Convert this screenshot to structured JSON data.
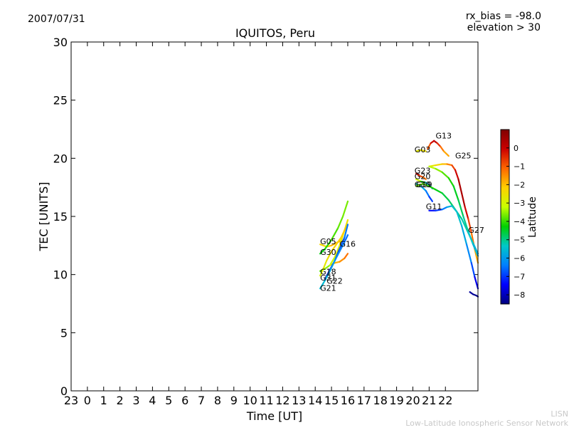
{
  "header": {
    "date": "2007/07/31",
    "rx_bias": "rx_bias = -98.0",
    "elevation": "elevation > 30",
    "title": "IQUITOS, Peru"
  },
  "footer": {
    "credit_line1": "LISN",
    "credit_line2": "Low-Latitude Ionospheric Sensor Network"
  },
  "colors": {
    "axis": "#000000",
    "background": "#ffffff",
    "credit": "#c8c8c8",
    "colormap": [
      "#00007f",
      "#0000ff",
      "#007fff",
      "#00c8c8",
      "#00d000",
      "#c8ff00",
      "#ffd000",
      "#ff6600",
      "#cc0000",
      "#7f0000"
    ]
  },
  "chart_data": {
    "type": "scatter",
    "title": "IQUITOS, Peru",
    "xlabel": "Time [UT]",
    "ylabel": "TEC [UNITS]",
    "x_tick_labels": [
      "23",
      "0",
      "1",
      "2",
      "3",
      "4",
      "5",
      "6",
      "7",
      "8",
      "9",
      "10",
      "11",
      "12",
      "13",
      "14",
      "15",
      "16",
      "17",
      "18",
      "19",
      "20",
      "21",
      "22"
    ],
    "x_tick_hours": [
      -1,
      0,
      1,
      2,
      3,
      4,
      5,
      6,
      7,
      8,
      9,
      10,
      11,
      12,
      13,
      14,
      15,
      16,
      17,
      18,
      19,
      20,
      21,
      22
    ],
    "xlim": [
      -1,
      24
    ],
    "ylim": [
      0,
      30
    ],
    "y_ticks": [
      0,
      5,
      10,
      15,
      20,
      25,
      30
    ],
    "grid": false,
    "colorbar": {
      "label": "Latitude",
      "range": [
        -8.5,
        1.0
      ],
      "ticks": [
        0,
        -1,
        -2,
        -3,
        -4,
        -5,
        -6,
        -7,
        -8
      ],
      "tick_labels": [
        "0",
        "−1",
        "−2",
        "−3",
        "−4",
        "−5",
        "−6",
        "−7",
        "−8"
      ]
    },
    "series": [
      {
        "name": "G05",
        "x": [
          14.3,
          14.7,
          15.0,
          15.4,
          15.8
        ],
        "y": [
          12.6,
          12.4,
          12.5,
          12.8,
          13.0
        ],
        "lat": [
          -2.5,
          -2.2,
          -2.0,
          -1.8,
          -1.6
        ]
      },
      {
        "name": "G30",
        "x": [
          14.3,
          14.6,
          15.0,
          15.4,
          15.7,
          16.0
        ],
        "y": [
          11.8,
          12.2,
          13.0,
          14.0,
          15.0,
          16.3
        ],
        "lat": [
          -4.5,
          -4.2,
          -4.0,
          -3.8,
          -3.7,
          -3.6
        ]
      },
      {
        "name": "G16",
        "x": [
          14.9,
          15.2,
          15.5,
          15.8,
          16.0
        ],
        "y": [
          10.8,
          11.0,
          11.1,
          11.4,
          11.8
        ],
        "lat": [
          -2.2,
          -2.0,
          -1.7,
          -1.4,
          -1.1
        ]
      },
      {
        "name": "G18",
        "x": [
          14.3,
          14.6,
          14.9,
          15.2,
          15.5,
          15.8,
          16.0
        ],
        "y": [
          10.3,
          10.5,
          10.8,
          11.5,
          12.5,
          13.8,
          14.7
        ],
        "lat": [
          -4.0,
          -3.7,
          -3.4,
          -3.1,
          -2.8,
          -2.6,
          -2.4
        ]
      },
      {
        "name": "G31",
        "x": [
          14.3,
          14.5,
          14.7,
          15.0,
          15.3,
          15.6,
          15.8,
          16.0
        ],
        "y": [
          9.9,
          10.5,
          11.2,
          12.0,
          12.6,
          13.2,
          13.8,
          14.3
        ],
        "lat": [
          -3.0,
          -2.8,
          -2.6,
          -2.4,
          -2.3,
          -2.2,
          -2.1,
          -2.0
        ]
      },
      {
        "name": "G22",
        "x": [
          14.6,
          14.9,
          15.2,
          15.5,
          15.8,
          16.0
        ],
        "y": [
          9.6,
          10.4,
          11.2,
          12.2,
          13.2,
          14.3
        ],
        "lat": [
          -8.0,
          -7.6,
          -7.2,
          -6.9,
          -6.6,
          -6.3
        ]
      },
      {
        "name": "G21",
        "x": [
          14.3,
          14.6,
          14.9,
          15.2,
          15.5,
          15.8,
          16.0
        ],
        "y": [
          8.8,
          9.5,
          10.3,
          11.2,
          12.0,
          12.8,
          13.4
        ],
        "lat": [
          -5.5,
          -5.6,
          -5.8,
          -6.0,
          -6.2,
          -6.4,
          -6.6
        ]
      },
      {
        "name": "G03",
        "x": [
          20.2,
          20.5,
          20.8
        ],
        "y": [
          20.6,
          20.7,
          20.6
        ],
        "lat": [
          -2.8,
          -2.6,
          -2.4
        ]
      },
      {
        "name": "G13",
        "x": [
          20.9,
          21.1,
          21.3,
          21.5,
          21.7,
          21.9,
          22.2
        ],
        "y": [
          20.8,
          21.3,
          21.5,
          21.3,
          21.0,
          20.6,
          20.2
        ],
        "lat": [
          -1.5,
          -0.5,
          0.2,
          0.0,
          -1.0,
          -1.5,
          -2.0
        ]
      },
      {
        "name": "G25",
        "x": [
          21.0,
          21.4,
          21.8,
          22.1,
          22.4,
          22.6,
          22.8,
          23.0,
          23.2,
          23.4,
          23.6,
          23.8,
          24.0
        ],
        "y": [
          19.3,
          19.4,
          19.5,
          19.5,
          19.4,
          19.0,
          18.2,
          17.0,
          15.8,
          14.8,
          13.6,
          12.2,
          11.0
        ],
        "lat": [
          -2.8,
          -2.5,
          -2.2,
          -1.8,
          -1.0,
          -0.5,
          0.3,
          0.5,
          0.2,
          -0.5,
          -1.0,
          -1.5,
          -2.0
        ]
      },
      {
        "name": "G23",
        "x": [
          20.2,
          20.4,
          20.6,
          20.8
        ],
        "y": [
          18.7,
          18.5,
          18.4,
          18.2
        ],
        "lat": [
          0.0,
          -0.5,
          -1.0,
          -1.5
        ]
      },
      {
        "name": "G20",
        "x": [
          20.2,
          20.5,
          20.8,
          21.0,
          21.2
        ],
        "y": [
          18.2,
          18.0,
          17.9,
          17.7,
          17.4
        ],
        "lat": [
          -2.6,
          -3.5,
          -5.0,
          -6.0,
          -7.0
        ]
      },
      {
        "name": "G10",
        "x": [
          20.2,
          20.5,
          20.8,
          21.0,
          21.2
        ],
        "y": [
          17.8,
          17.6,
          17.2,
          16.7,
          16.3
        ],
        "lat": [
          -4.8,
          -5.5,
          -6.2,
          -6.7,
          -7.2
        ]
      },
      {
        "name": "G19",
        "x": [
          20.2,
          20.6,
          21.0,
          21.4,
          21.8,
          22.2,
          22.6,
          23.0,
          23.4,
          23.8,
          24.0
        ],
        "y": [
          17.6,
          17.8,
          17.6,
          17.3,
          17.0,
          16.4,
          15.6,
          14.8,
          13.6,
          12.4,
          11.8
        ],
        "lat": [
          -3.5,
          -3.8,
          -4.0,
          -4.3,
          -4.5,
          -4.7,
          -4.9,
          -5.1,
          -5.3,
          -5.5,
          -5.6
        ]
      },
      {
        "name": "G11",
        "x": [
          21.0,
          21.4,
          21.8,
          22.1,
          22.4,
          22.7,
          23.0,
          23.3,
          23.6,
          23.8,
          24.0
        ],
        "y": [
          15.5,
          15.5,
          15.6,
          15.8,
          15.9,
          15.4,
          14.2,
          12.6,
          11.0,
          9.8,
          8.8
        ],
        "lat": [
          -7.5,
          -7.2,
          -6.8,
          -6.0,
          -5.5,
          -5.3,
          -5.6,
          -6.0,
          -6.5,
          -7.2,
          -8.0
        ]
      },
      {
        "name": "G27",
        "x": [
          21.0,
          21.4,
          21.8,
          22.2,
          22.5,
          22.8,
          23.1,
          23.4,
          23.7,
          24.0
        ],
        "y": [
          19.3,
          19.1,
          18.8,
          18.3,
          17.6,
          16.4,
          15.0,
          13.7,
          12.6,
          11.6
        ],
        "lat": [
          -3.2,
          -3.4,
          -3.7,
          -4.0,
          -4.3,
          -4.6,
          -4.9,
          -5.2,
          -5.5,
          -5.8
        ]
      },
      {
        "name": "",
        "x": [
          23.5,
          23.7,
          23.9,
          24.0
        ],
        "y": [
          8.5,
          8.3,
          8.2,
          8.1
        ],
        "lat": [
          -8.2,
          -8.3,
          -8.4,
          -8.4
        ]
      }
    ],
    "labels": [
      {
        "name": "G05",
        "x": 14.3,
        "y": 12.6
      },
      {
        "name": "G30",
        "x": 14.3,
        "y": 11.7
      },
      {
        "name": "G16",
        "x": 15.5,
        "y": 12.4
      },
      {
        "name": "G18",
        "x": 14.3,
        "y": 10.0
      },
      {
        "name": "G31",
        "x": 14.3,
        "y": 9.5
      },
      {
        "name": "G22",
        "x": 14.7,
        "y": 9.2
      },
      {
        "name": "G21",
        "x": 14.3,
        "y": 8.6
      },
      {
        "name": "G03",
        "x": 20.1,
        "y": 20.5
      },
      {
        "name": "G13",
        "x": 21.4,
        "y": 21.7
      },
      {
        "name": "G25",
        "x": 22.6,
        "y": 20.0
      },
      {
        "name": "G23",
        "x": 20.1,
        "y": 18.7
      },
      {
        "name": "G20",
        "x": 20.1,
        "y": 18.2
      },
      {
        "name": "G10",
        "x": 20.1,
        "y": 17.5
      },
      {
        "name": "G19",
        "x": 20.2,
        "y": 17.5
      },
      {
        "name": "G11",
        "x": 20.8,
        "y": 15.6
      },
      {
        "name": "G27",
        "x": 23.4,
        "y": 13.6
      }
    ]
  }
}
